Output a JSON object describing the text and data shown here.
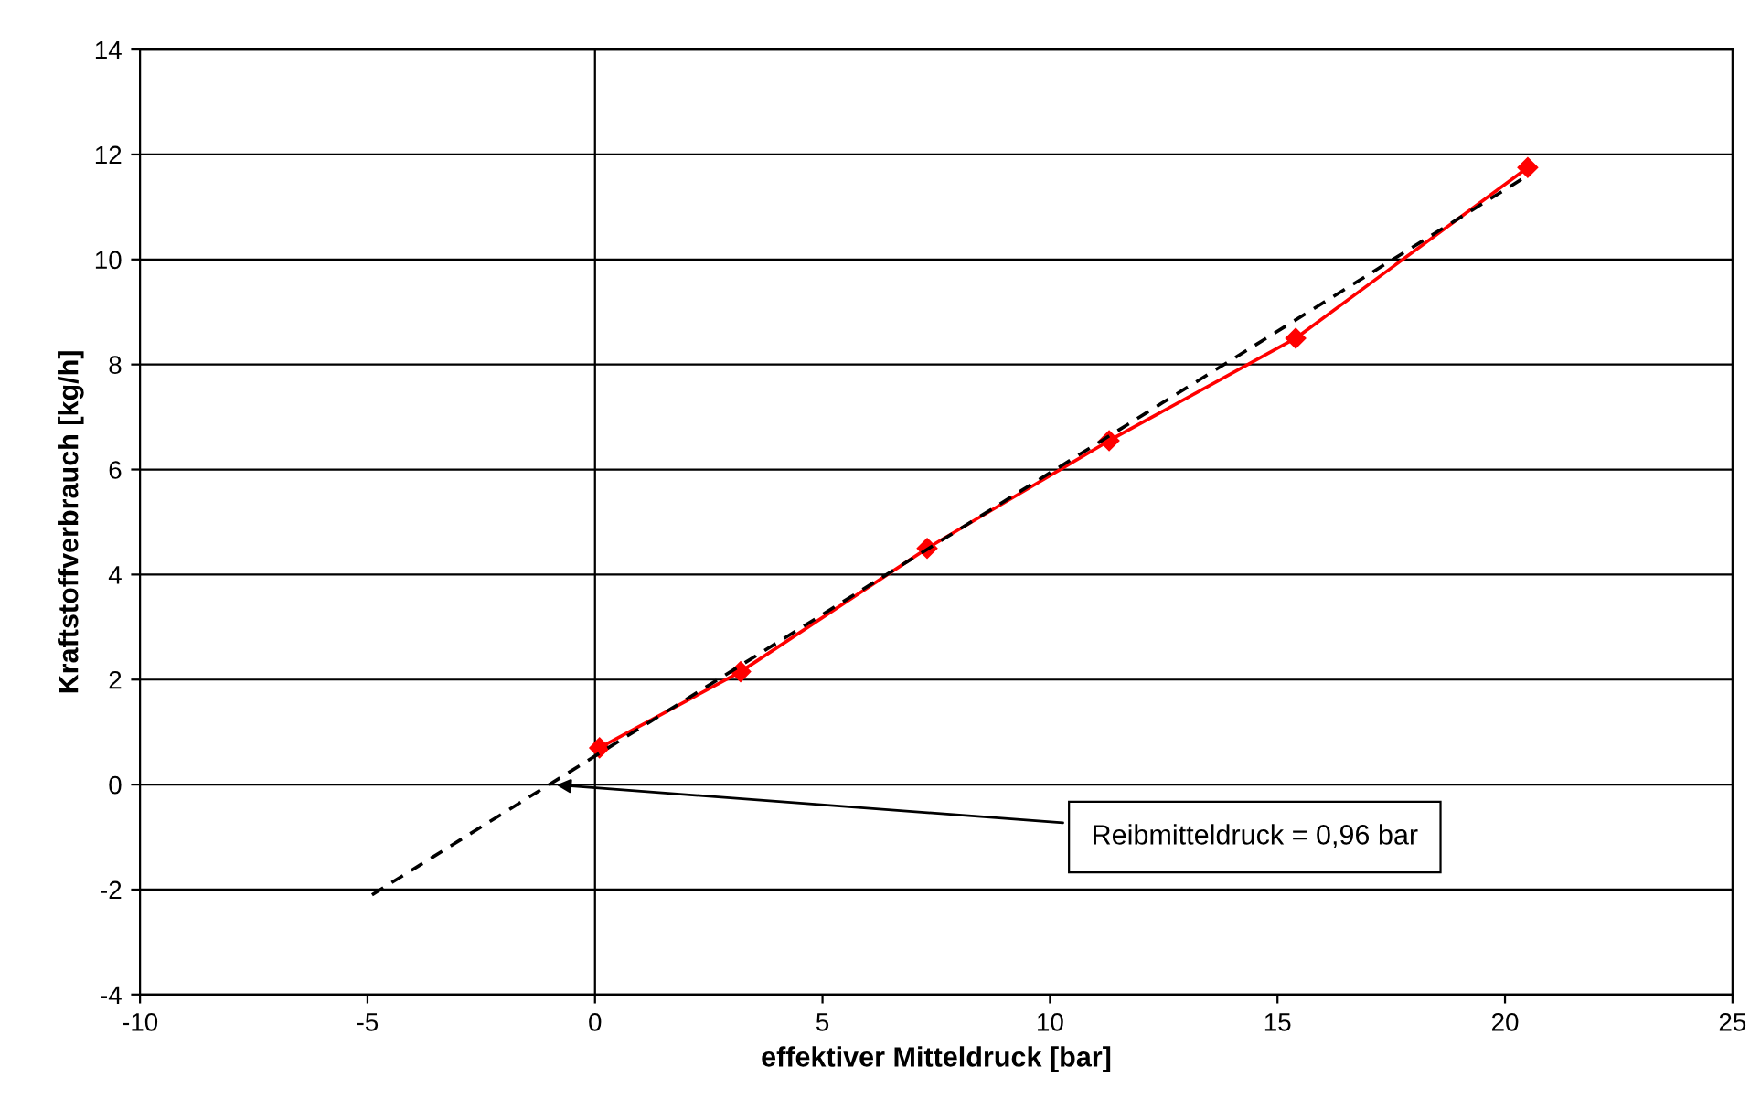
{
  "chart_data": {
    "type": "line",
    "xlabel": "effektiver Mitteldruck [bar]",
    "ylabel": "Kraftstoffverbrauch [kg/h]",
    "series": [
      {
        "color": "#ff0000",
        "x": [
          0.1,
          3.2,
          7.3,
          11.3,
          15.4,
          20.5
        ],
        "values": [
          0.7,
          2.15,
          4.5,
          6.55,
          8.5,
          11.75
        ],
        "marker": "diamond",
        "line_style": "solid"
      },
      {
        "color": "#000000",
        "x": [
          -4.9,
          20.5
        ],
        "values": [
          -2.1,
          11.6
        ],
        "marker": "none",
        "line_style": "dashed"
      }
    ],
    "xlim": [
      -10,
      25
    ],
    "xticks": [
      -10,
      -5,
      0,
      5,
      10,
      15,
      20,
      25
    ],
    "ylim": [
      -4,
      14
    ],
    "yticks": [
      -4,
      -2,
      0,
      2,
      4,
      6,
      8,
      10,
      12,
      14
    ],
    "grid": "y",
    "legend": false,
    "ref_lines": [
      {
        "axis": "x",
        "value": 0,
        "color": "#000000"
      }
    ],
    "annotations": [
      {
        "text": "Reibmitteldruck = 0,96 bar",
        "x": -0.96,
        "y": 0
      }
    ]
  }
}
